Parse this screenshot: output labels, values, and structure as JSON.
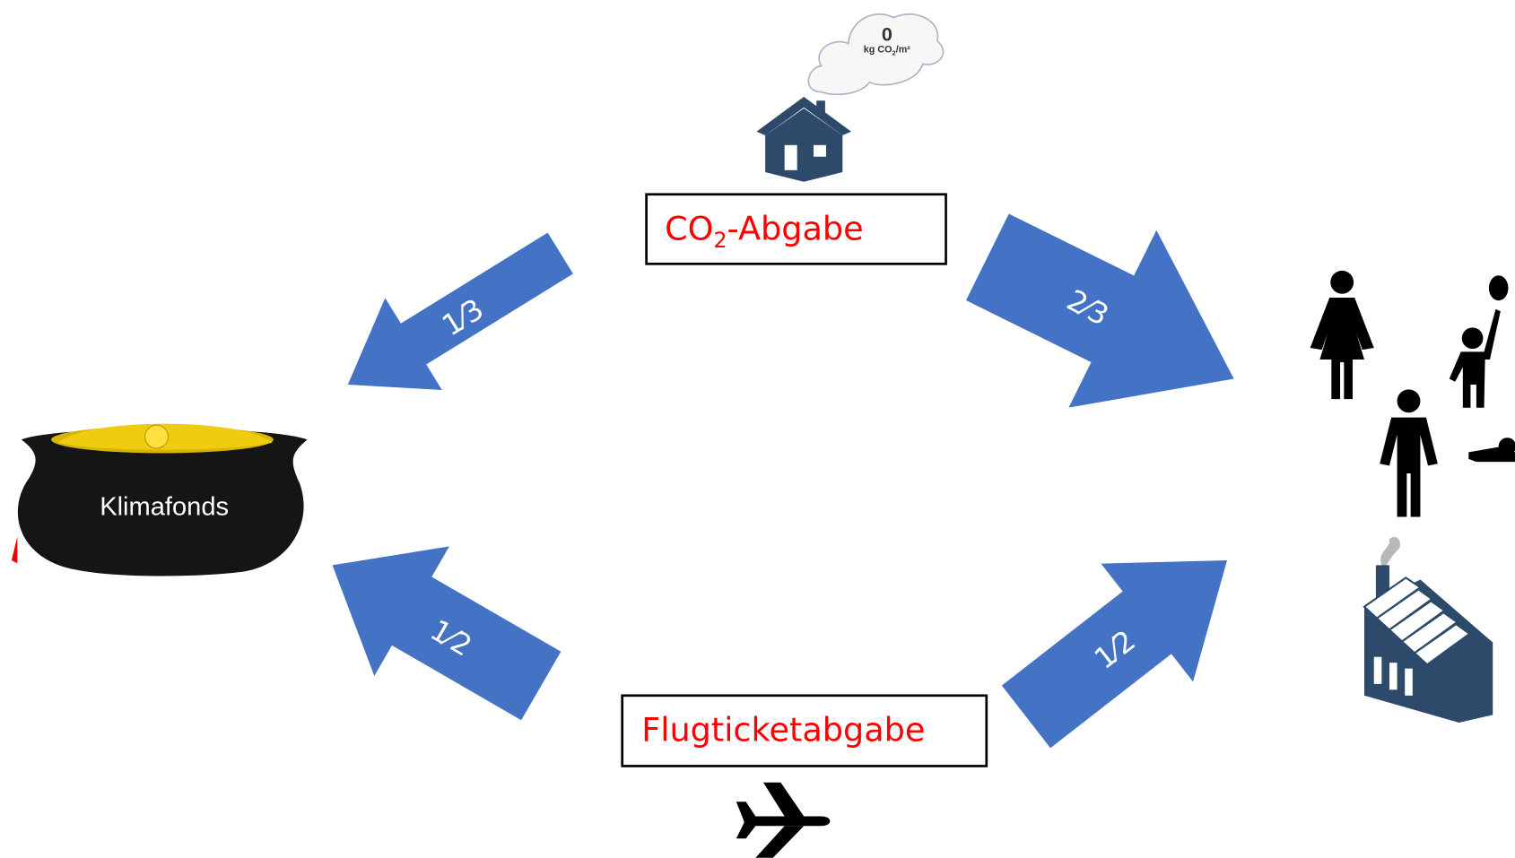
{
  "cloud": {
    "value": "0",
    "unit_main": "kg CO",
    "unit_sub": "2",
    "unit_rest": "/m²"
  },
  "co2_box": {
    "main": "CO",
    "sub": "2",
    "rest": "-Abgabe"
  },
  "flight_box": {
    "label": "Flugticketabgabe"
  },
  "fund": {
    "label": "Klimafonds"
  },
  "arrows": [
    {
      "label": "1⁄3"
    },
    {
      "label": "2⁄3"
    },
    {
      "label": "1⁄2"
    },
    {
      "label": "1⁄2"
    }
  ]
}
